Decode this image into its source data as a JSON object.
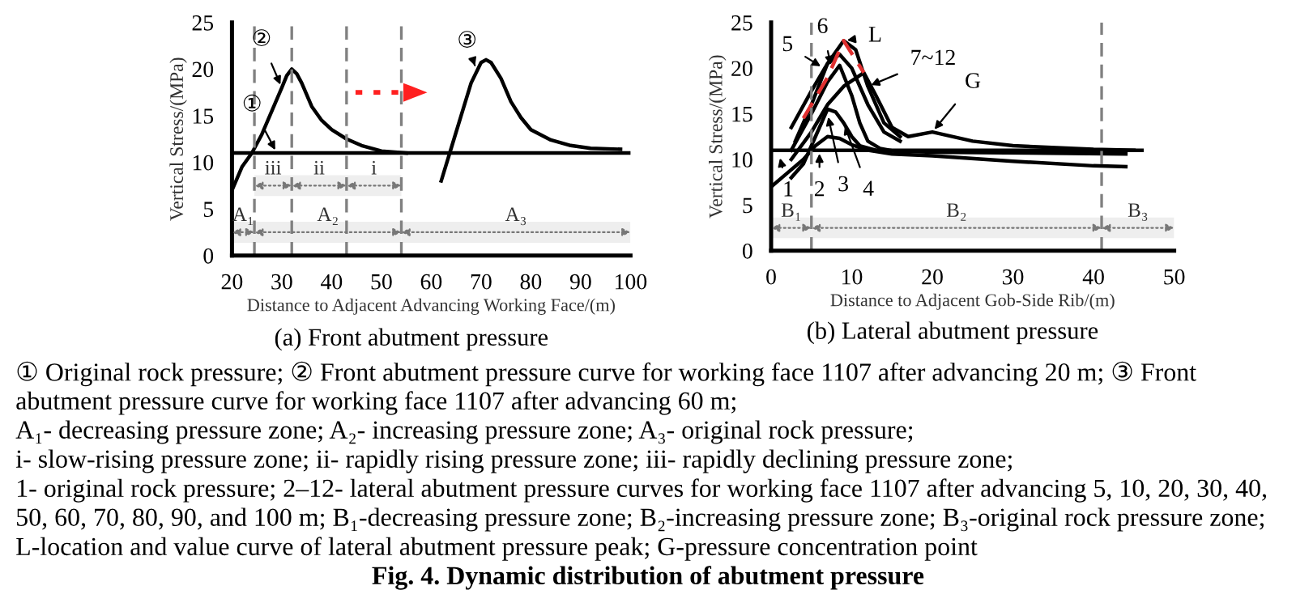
{
  "chart_data": [
    {
      "type": "line",
      "title": "(a) Front abutment pressure",
      "xlabel": "Distance to Adjacent Advancing Working Face/(m)",
      "ylabel": "Vertical Stress/(MPa)",
      "xlim": [
        20,
        100
      ],
      "xticks": [
        20,
        30,
        40,
        50,
        60,
        70,
        80,
        90,
        100
      ],
      "ylim": [
        0,
        25
      ],
      "yticks": [
        0,
        5,
        10,
        15,
        20,
        25
      ],
      "grid": false,
      "legend": false,
      "marker": "none",
      "series": [
        {
          "color": "#000000",
          "x": [
            20,
            100
          ],
          "values": [
            11,
            11
          ]
        },
        {
          "color": "#000000",
          "x": [
            20,
            22,
            24,
            26,
            28,
            30,
            31,
            32,
            33,
            34,
            36,
            38,
            40,
            43,
            46,
            50,
            55
          ],
          "values": [
            7,
            9.5,
            11,
            13,
            15.5,
            18,
            19.3,
            20,
            19.5,
            18.5,
            16,
            14.5,
            13.5,
            12.5,
            11.8,
            11.2,
            11
          ]
        },
        {
          "color": "#000000",
          "x": [
            62,
            64,
            66,
            68,
            70,
            71,
            72,
            74,
            76,
            78,
            80,
            84,
            88,
            92,
            98
          ],
          "values": [
            8,
            11.5,
            15,
            18.5,
            20.7,
            21,
            20.7,
            19,
            16.5,
            14.8,
            13.5,
            12.4,
            11.8,
            11.5,
            11.4
          ]
        }
      ],
      "ref_lines": [
        {
          "axis": "x",
          "value": 24.5,
          "color": "#808080",
          "line_style": "dashed"
        },
        {
          "axis": "x",
          "value": 32,
          "color": "#808080",
          "line_style": "dashed"
        },
        {
          "axis": "x",
          "value": 43,
          "color": "#808080",
          "line_style": "dashed"
        },
        {
          "axis": "x",
          "value": 54,
          "color": "#808080",
          "line_style": "dashed"
        }
      ],
      "bands": [
        {
          "axis": "x",
          "from": 20,
          "to": 24.5,
          "label": "A₁",
          "color": "#eeeeee"
        },
        {
          "axis": "x",
          "from": 24.5,
          "to": 54,
          "label": "A₂",
          "color": "#eeeeee"
        },
        {
          "axis": "x",
          "from": 54,
          "to": 100,
          "label": "A₃",
          "color": "#eeeeee"
        },
        {
          "axis": "x",
          "from": 24.5,
          "to": 32,
          "label": "iii",
          "color": "#eeeeee"
        },
        {
          "axis": "x",
          "from": 32,
          "to": 43,
          "label": "ii",
          "color": "#eeeeee"
        },
        {
          "axis": "x",
          "from": 43,
          "to": 54,
          "label": "i",
          "color": "#eeeeee"
        }
      ],
      "annotations": [
        {
          "text": "①",
          "x": 29,
          "y": 11
        },
        {
          "text": "②",
          "x": 30,
          "y": 18
        },
        {
          "text": "③",
          "x": 69,
          "y": 20
        }
      ]
    },
    {
      "type": "line",
      "title": "(b) Lateral abutment pressure",
      "xlabel": "Distance to Adjacent Gob-Side Rib/(m)",
      "ylabel": "Vertical Stress/(MPa)",
      "xlim": [
        0,
        50
      ],
      "xticks": [
        0,
        10,
        20,
        30,
        40,
        50
      ],
      "ylim": [
        0,
        25
      ],
      "yticks": [
        0,
        5,
        10,
        15,
        20,
        25
      ],
      "grid": false,
      "legend": false,
      "marker": "none",
      "series": [
        {
          "color": "#000000",
          "x": [
            0,
            46
          ],
          "values": [
            11,
            11
          ]
        },
        {
          "color": "#000000",
          "x": [
            0,
            2,
            4,
            5.5,
            7,
            8.5,
            10,
            12,
            15,
            20,
            30,
            40,
            44
          ],
          "values": [
            7,
            8.5,
            10,
            11.5,
            12.5,
            12.3,
            11.6,
            11,
            10.6,
            10.4,
            9.8,
            9.3,
            9.2
          ]
        },
        {
          "color": "#000000",
          "x": [
            2.5,
            4,
            5.5,
            7,
            8,
            9,
            10,
            11,
            13,
            20,
            44
          ],
          "values": [
            8,
            9.5,
            12.5,
            15.5,
            15.2,
            14,
            12.5,
            11.5,
            11,
            10.8,
            10.6
          ]
        },
        {
          "color": "#000000",
          "x": [
            2.5,
            5,
            7,
            8.5,
            10,
            11,
            12,
            13.5,
            16
          ],
          "values": [
            11,
            15,
            18.5,
            20.3,
            17,
            14,
            12,
            11.2,
            10.8
          ]
        },
        {
          "color": "#000000",
          "x": [
            2.5,
            5,
            7,
            8.5,
            10,
            12,
            14,
            16
          ],
          "values": [
            13.5,
            17.5,
            20.5,
            21.5,
            20,
            16,
            13,
            12
          ]
        },
        {
          "color": "#000000",
          "x": [
            3,
            5,
            7,
            9,
            10.5,
            12,
            14,
            16
          ],
          "values": [
            12,
            16,
            20.5,
            23,
            22,
            18,
            14,
            12.5
          ]
        },
        {
          "color": "#000000",
          "x": [
            2.5,
            5,
            7,
            9,
            11.5,
            13,
            15,
            17,
            20,
            25,
            30,
            40,
            45
          ],
          "values": [
            10,
            13,
            16,
            18,
            19.5,
            17,
            13.5,
            12.5,
            13,
            12,
            11.5,
            11.1,
            11
          ]
        },
        {
          "color": "#e03030",
          "line_style": "dashed",
          "x": [
            4,
            7,
            9,
            11.5
          ],
          "values": [
            14.5,
            19,
            23,
            19.5
          ]
        }
      ],
      "ref_lines": [
        {
          "axis": "x",
          "value": 5,
          "color": "#808080",
          "line_style": "dashed"
        },
        {
          "axis": "x",
          "value": 41,
          "color": "#808080",
          "line_style": "dashed"
        }
      ],
      "bands": [
        {
          "axis": "x",
          "from": 0,
          "to": 5,
          "label": "B₁",
          "color": "#eeeeee"
        },
        {
          "axis": "x",
          "from": 5,
          "to": 41,
          "label": "B₂",
          "color": "#eeeeee"
        },
        {
          "axis": "x",
          "from": 41,
          "to": 50,
          "label": "B₃",
          "color": "#eeeeee"
        }
      ],
      "annotations": [
        {
          "text": "1",
          "x": 1,
          "y": 10.5
        },
        {
          "text": "2",
          "x": 6,
          "y": 11
        },
        {
          "text": "3",
          "x": 7,
          "y": 15
        },
        {
          "text": "4",
          "x": 9,
          "y": 14
        },
        {
          "text": "5",
          "x": 6.5,
          "y": 20
        },
        {
          "text": "6",
          "x": 7.5,
          "y": 20
        },
        {
          "text": "L",
          "x": 9,
          "y": 23
        },
        {
          "text": "7~12",
          "x": 12,
          "y": 18
        },
        {
          "text": "G",
          "x": 20,
          "y": 13
        },
        "① Original rock pressure; ② Front abutment pressure curve for working face 1107 after advancing 20 m; ③ Front",
        "abutment pressure curve for working face 1107 after advancing 60 m;",
        "A₁- decreasing pressure zone; A₂- increasing pressure zone; A₃- original rock pressure;",
        "i- slow-rising pressure zone; ii- rapidly rising pressure zone; iii- rapidly declining pressure zone;",
        "1- original rock pressure; 2–12- lateral abutment pressure curves for working face 1107 after advancing 5, 10, 20, 30, 40,",
        "50, 60, 70, 80, 90, and 100 m; B₁-decreasing pressure zone; B₂-increasing pressure zone; B₃-original rock pressure zone;",
        "L-location and value curve of lateral abutment pressure peak; G-pressure concentration point",
        "Fig. 4. Dynamic distribution of abutment pressure"
      ]
    }
  ]
}
